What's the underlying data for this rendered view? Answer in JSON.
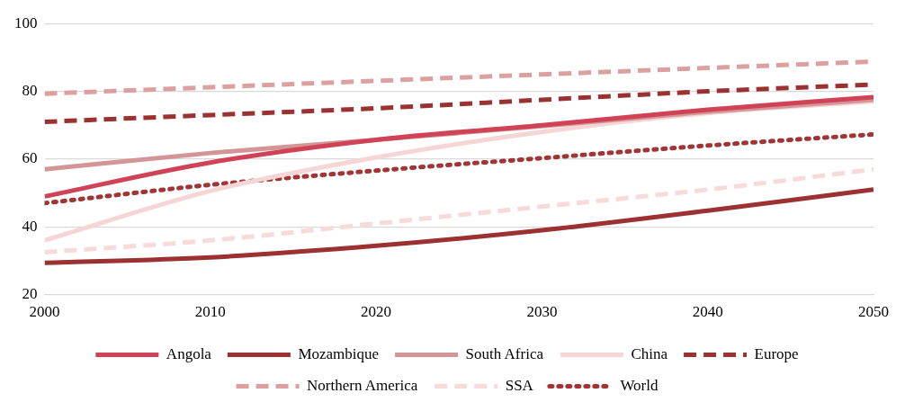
{
  "chart_data": {
    "type": "line",
    "x": [
      2000,
      2010,
      2020,
      2030,
      2040,
      2050
    ],
    "xlim": [
      2000,
      2050
    ],
    "xticks": [
      2000,
      2010,
      2020,
      2030,
      2040,
      2050
    ],
    "ylim": [
      20,
      100
    ],
    "yticks": [
      20,
      40,
      60,
      80,
      100
    ],
    "grid": "y",
    "legend": "bottom",
    "marker": "none",
    "series": [
      {
        "name": "Angola",
        "color": "#d04255",
        "line_style": "solid",
        "values": [
          49,
          59,
          65.7,
          70,
          74.6,
          78.3
        ]
      },
      {
        "name": "Mozambique",
        "color": "#9b3131",
        "line_style": "solid",
        "values": [
          29.4,
          31,
          34.4,
          39,
          44.8,
          51
        ]
      },
      {
        "name": "South Africa",
        "color": "#d49597",
        "line_style": "solid",
        "values": [
          57,
          61.8,
          65.7,
          69.7,
          74,
          77.5
        ]
      },
      {
        "name": "China",
        "color": "#f5d5d5",
        "line_style": "solid",
        "values": [
          36,
          50.6,
          60.5,
          68,
          73.6,
          77
        ]
      },
      {
        "name": "Europe",
        "color": "#9b3131",
        "line_style": "dashed",
        "values": [
          71,
          73,
          75,
          77.5,
          80,
          82
        ]
      },
      {
        "name": "Northern America",
        "color": "#dca0a0",
        "line_style": "dashed",
        "values": [
          79.3,
          81.2,
          83.1,
          85,
          86.9,
          88.8
        ]
      },
      {
        "name": "SSA",
        "color": "#f7dada",
        "line_style": "dashed",
        "values": [
          32.5,
          36,
          41,
          46,
          51,
          57
        ]
      },
      {
        "name": "World",
        "color": "#a13434",
        "line_style": "dotted",
        "values": [
          47,
          52.4,
          56.6,
          60.3,
          64,
          67.3
        ]
      }
    ]
  }
}
